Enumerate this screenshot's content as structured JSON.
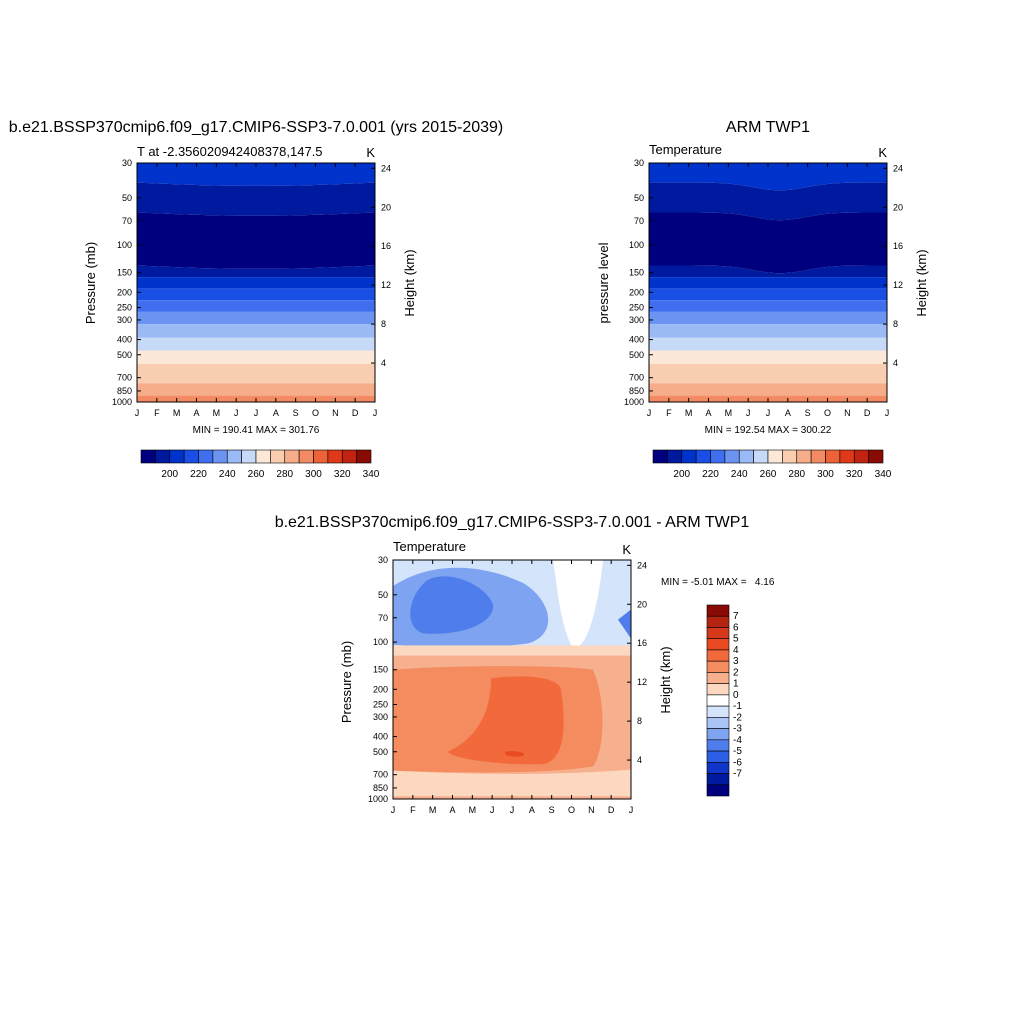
{
  "chart_data": [
    {
      "type": "heatmap",
      "title": "b.e21.BSSP370cmip6.f09_g17.CMIP6-SSP3-7.0.001 (yrs 2015-2039)",
      "subtitle_left": "T at -2.356020942408378,147.5",
      "subtitle_right": "K",
      "ylabel": "Pressure (mb)",
      "ylabel_right": "Height (km)",
      "x_ticks": [
        "J",
        "F",
        "M",
        "A",
        "M",
        "J",
        "J",
        "A",
        "S",
        "O",
        "N",
        "D",
        "J"
      ],
      "y_ticks": [
        "30",
        "50",
        "70",
        "100",
        "150",
        "200",
        "250",
        "300",
        "400",
        "500",
        "700",
        "850",
        "1000"
      ],
      "y_ticks_right": [
        "24",
        "20",
        "16",
        "12",
        "8",
        "4"
      ],
      "stats": "MIN = 190.41 MAX = 301.76",
      "colorbar_labels": [
        "200",
        "220",
        "240",
        "260",
        "280",
        "300",
        "320",
        "340"
      ],
      "colorbar_levels": [
        190,
        200,
        210,
        220,
        230,
        240,
        250,
        260,
        270,
        280,
        290,
        300,
        310,
        320,
        330,
        340,
        350
      ],
      "ylim": [
        30,
        1000
      ],
      "y_scale": "log",
      "values_K_by_level": {
        "30": 222,
        "50": 207,
        "70": 196,
        "100": 194,
        "150": 205,
        "200": 218,
        "250": 229,
        "300": 240,
        "400": 256,
        "500": 268,
        "700": 283,
        "850": 292,
        "1000": 300
      }
    },
    {
      "type": "heatmap",
      "title": "ARM TWP1",
      "subtitle_left": "Temperature",
      "subtitle_right": "K",
      "ylabel": "pressure level",
      "ylabel_right": "Height (km)",
      "x_ticks": [
        "J",
        "F",
        "M",
        "A",
        "M",
        "J",
        "J",
        "A",
        "S",
        "O",
        "N",
        "D",
        "J"
      ],
      "y_ticks": [
        "30",
        "50",
        "70",
        "100",
        "150",
        "200",
        "250",
        "300",
        "400",
        "500",
        "700",
        "850",
        "1000"
      ],
      "y_ticks_right": [
        "24",
        "20",
        "16",
        "12",
        "8",
        "4"
      ],
      "stats": "MIN = 192.54 MAX = 300.22",
      "colorbar_labels": [
        "200",
        "220",
        "240",
        "260",
        "280",
        "300",
        "320",
        "340"
      ],
      "colorbar_levels": [
        190,
        200,
        210,
        220,
        230,
        240,
        250,
        260,
        270,
        280,
        290,
        300,
        310,
        320,
        330,
        340,
        350
      ],
      "ylim": [
        30,
        1000
      ],
      "y_scale": "log"
    },
    {
      "type": "heatmap",
      "title": "b.e21.BSSP370cmip6.f09_g17.CMIP6-SSP3-7.0.001 - ARM TWP1",
      "subtitle_left": "Temperature",
      "subtitle_right": "K",
      "ylabel": "Pressure (mb)",
      "ylabel_right": "Height (km)",
      "x_ticks": [
        "J",
        "F",
        "M",
        "A",
        "M",
        "J",
        "J",
        "A",
        "S",
        "O",
        "N",
        "D",
        "J"
      ],
      "y_ticks": [
        "30",
        "50",
        "70",
        "100",
        "150",
        "200",
        "250",
        "300",
        "400",
        "500",
        "700",
        "850",
        "1000"
      ],
      "y_ticks_right": [
        "24",
        "20",
        "16",
        "12",
        "8",
        "4"
      ],
      "stats": "MIN = -5.01 MAX =   4.16",
      "colorbar_labels": [
        "7",
        "6",
        "5",
        "4",
        "3",
        "2",
        "1",
        "0",
        "-1",
        "-2",
        "-3",
        "-4",
        "-5",
        "-6",
        "-7"
      ],
      "ylim": [
        30,
        1000
      ],
      "y_scale": "log"
    }
  ],
  "colors": {
    "ramp_cool_to_warm": [
      "#00007f",
      "#001a9f",
      "#0033cc",
      "#1a4fe6",
      "#3f6fef",
      "#6b93f2",
      "#9bb9f5",
      "#c6daf8",
      "#fbe8d8",
      "#f8cdb0",
      "#f5ad8a",
      "#f28a63",
      "#ee6237",
      "#e0391a",
      "#c22210",
      "#8a0a05"
    ],
    "diff_scale": [
      "#8a0a05",
      "#b52410",
      "#d6381a",
      "#e94a22",
      "#f26a3c",
      "#f48c60",
      "#f7b08d",
      "#fbd8bf",
      "#ffffff",
      "#d4e4fa",
      "#a9c4f5",
      "#7ea3f0",
      "#4f7eec",
      "#2c5fe6",
      "#1035c8",
      "#001a9f",
      "#00007f"
    ]
  }
}
